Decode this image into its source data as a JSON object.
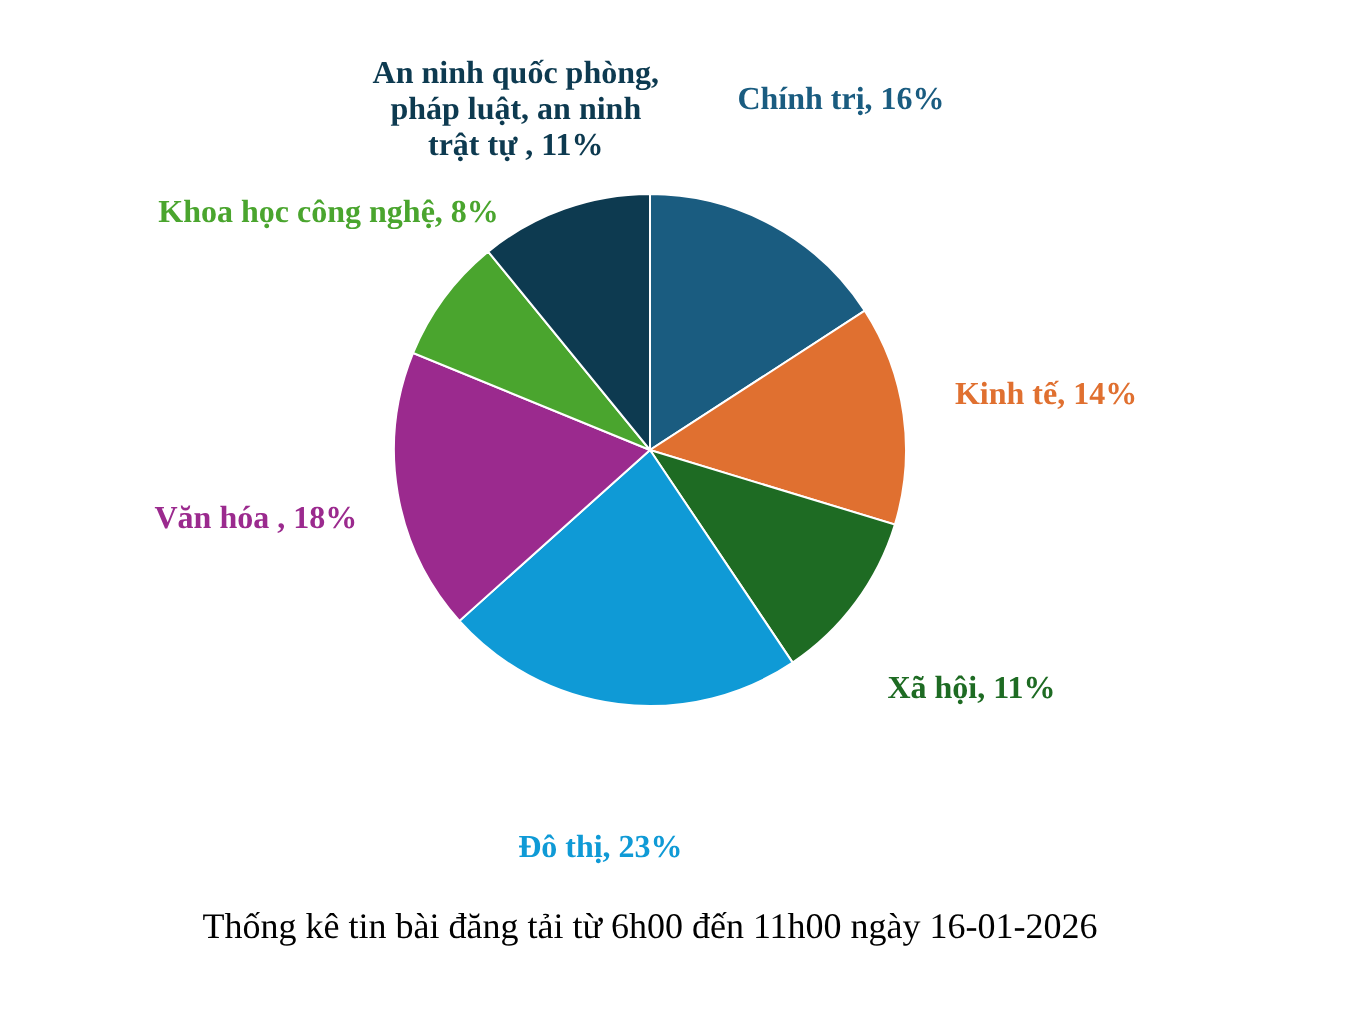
{
  "chart_data": {
    "type": "pie",
    "title": "Thống kê tin bài đăng tải từ 6h00 đến 11h00 ngày 16-01-2026",
    "categories": [
      "Chính trị",
      "Kinh tế",
      "Xã hội",
      "Đô thị",
      "Văn hóa ",
      "Khoa học công nghệ",
      "An ninh quốc phòng, pháp luật, an ninh trật tự "
    ],
    "values": [
      16,
      14,
      11,
      23,
      18,
      8,
      11
    ],
    "value_labels": [
      "16%",
      "14%",
      "11%",
      "23%",
      "18%",
      "8%",
      "11%"
    ],
    "colors": [
      "#1a5c80",
      "#e07030",
      "#1e6b23",
      "#0f9ad6",
      "#9b2a8e",
      "#4aa52e",
      "#0d3a50"
    ],
    "legend": false
  }
}
